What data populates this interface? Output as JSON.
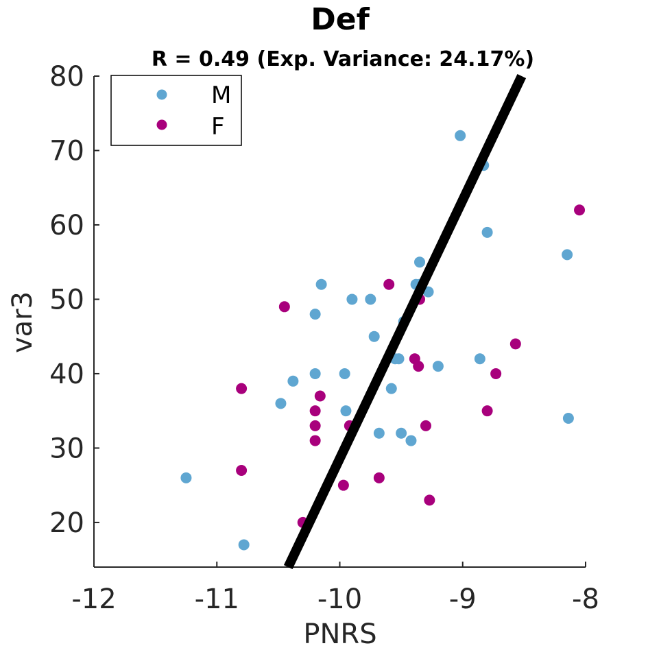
{
  "chart_data": {
    "type": "scatter",
    "title": "Def",
    "subtitle": "R = 0.49 (Exp. Variance: 24.17%)",
    "xlabel": "PNRS",
    "ylabel": "var3",
    "xlim": [
      -12,
      -8
    ],
    "ylim": [
      14,
      80
    ],
    "xticks": [
      "-12",
      "-11",
      "-10",
      "-9",
      "-8"
    ],
    "yticks": [
      "20",
      "30",
      "40",
      "50",
      "60",
      "70",
      "80"
    ],
    "grid": false,
    "legend_position": "top-left",
    "series": [
      {
        "name": "M",
        "color": "#5fa6d1",
        "points": [
          [
            -11.25,
            26
          ],
          [
            -10.78,
            17
          ],
          [
            -10.48,
            36
          ],
          [
            -10.38,
            39
          ],
          [
            -10.2,
            48
          ],
          [
            -10.2,
            40
          ],
          [
            -10.15,
            52
          ],
          [
            -9.96,
            40
          ],
          [
            -9.95,
            35
          ],
          [
            -9.9,
            50
          ],
          [
            -9.75,
            50
          ],
          [
            -9.72,
            45
          ],
          [
            -9.68,
            32
          ],
          [
            -9.58,
            38
          ],
          [
            -9.55,
            42
          ],
          [
            -9.52,
            42
          ],
          [
            -9.5,
            32
          ],
          [
            -9.48,
            47
          ],
          [
            -9.42,
            31
          ],
          [
            -9.38,
            52
          ],
          [
            -9.35,
            55
          ],
          [
            -9.35,
            52
          ],
          [
            -9.28,
            51
          ],
          [
            -9.2,
            41
          ],
          [
            -9.02,
            72
          ],
          [
            -8.86,
            42
          ],
          [
            -8.83,
            68
          ],
          [
            -8.8,
            59
          ],
          [
            -8.15,
            56
          ],
          [
            -8.14,
            34
          ]
        ]
      },
      {
        "name": "F",
        "color": "#a8007c",
        "points": [
          [
            -10.8,
            38
          ],
          [
            -10.8,
            27
          ],
          [
            -10.45,
            49
          ],
          [
            -10.3,
            20
          ],
          [
            -10.2,
            35
          ],
          [
            -10.2,
            33
          ],
          [
            -10.2,
            31
          ],
          [
            -10.16,
            37
          ],
          [
            -9.97,
            25
          ],
          [
            -9.92,
            33
          ],
          [
            -9.68,
            26
          ],
          [
            -9.6,
            52
          ],
          [
            -9.39,
            42
          ],
          [
            -9.36,
            41
          ],
          [
            -9.35,
            50
          ],
          [
            -9.3,
            33
          ],
          [
            -9.27,
            23
          ],
          [
            -8.8,
            35
          ],
          [
            -8.73,
            40
          ],
          [
            -8.57,
            44
          ],
          [
            -8.05,
            62
          ]
        ]
      }
    ],
    "fit_line": {
      "color": "#000000",
      "points": [
        [
          -10.42,
          14
        ],
        [
          -8.52,
          80
        ]
      ]
    }
  }
}
